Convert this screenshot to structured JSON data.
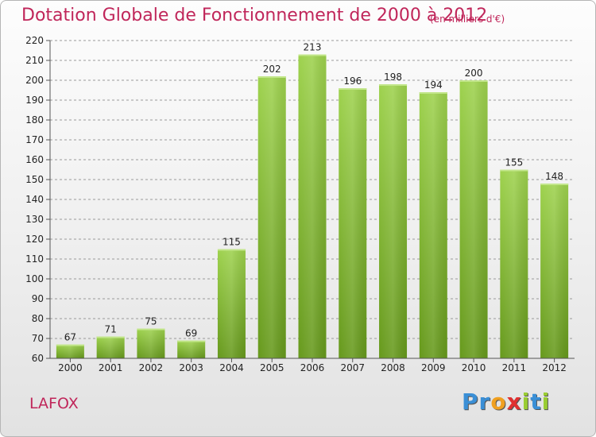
{
  "chart_data": {
    "type": "bar",
    "title": "Dotation Globale de Fonctionnement de 2000 à 2012",
    "subtitle": "(en milliers d'€)",
    "xlabel": "",
    "ylabel": "",
    "categories": [
      "2000",
      "2001",
      "2002",
      "2003",
      "2004",
      "2005",
      "2006",
      "2007",
      "2008",
      "2009",
      "2010",
      "2011",
      "2012"
    ],
    "values": [
      67,
      71,
      75,
      69,
      115,
      202,
      213,
      196,
      198,
      194,
      200,
      155,
      148
    ],
    "ylim": [
      60,
      220
    ],
    "yticks": [
      60,
      70,
      80,
      90,
      100,
      110,
      120,
      130,
      140,
      150,
      160,
      170,
      180,
      190,
      200,
      210,
      220
    ],
    "grid": true,
    "bar_color": "#8bc53f",
    "bar_color_dark": "#6a9e1f"
  },
  "commune": "LAFOX",
  "logo": {
    "letters": [
      {
        "ch": "P",
        "color": "#3a8fd6"
      },
      {
        "ch": "r",
        "color": "#3a8fd6"
      },
      {
        "ch": "o",
        "color": "#f0a020"
      },
      {
        "ch": "x",
        "color": "#e03030"
      },
      {
        "ch": "i",
        "color": "#9acd32"
      },
      {
        "ch": "t",
        "color": "#3a8fd6"
      },
      {
        "ch": "i",
        "color": "#9acd32"
      }
    ]
  },
  "colors": {
    "title": "#c0265a",
    "axis": "#555555",
    "grid": "#9a9a9a"
  }
}
